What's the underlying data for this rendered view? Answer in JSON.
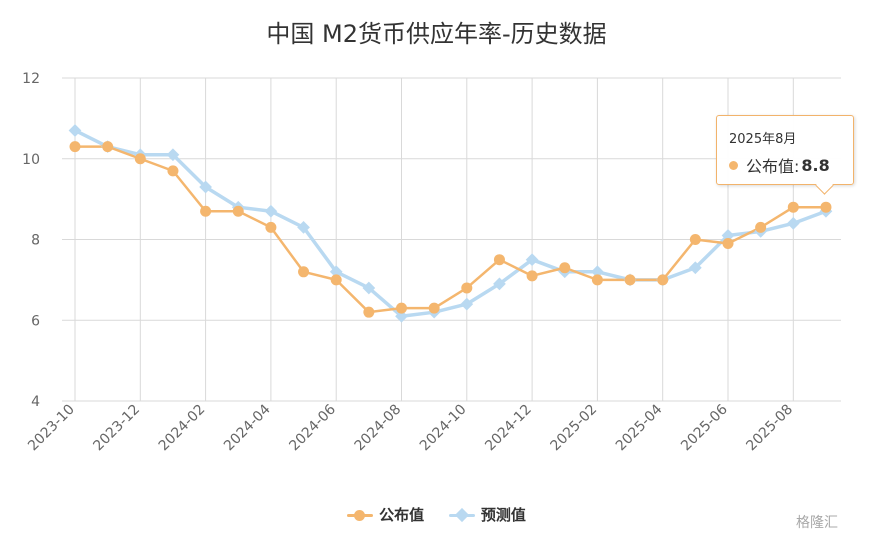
{
  "chart_data": {
    "type": "line",
    "title": "中国 M2货币供应年率-历史数据",
    "xlabel": "",
    "ylabel": "",
    "ylim": [
      4,
      12
    ],
    "yticks": [
      "4",
      "6",
      "8",
      "10",
      "12"
    ],
    "x": [
      "2023-10",
      "2023-11",
      "2023-12",
      "2024-01",
      "2024-02",
      "2024-03",
      "2024-04",
      "2024-05",
      "2024-06",
      "2024-07",
      "2024-08",
      "2024-09",
      "2024-10",
      "2024-11",
      "2024-12",
      "2025-01",
      "2025-02",
      "2025-03",
      "2025-04",
      "2025-05",
      "2025-06",
      "2025-07",
      "2025-08",
      "2025-09"
    ],
    "xtick_labels": [
      "2023-10",
      "2023-12",
      "2024-02",
      "2024-04",
      "2024-06",
      "2024-08",
      "2024-10",
      "2024-12",
      "2025-02",
      "2025-04",
      "2025-06",
      "2025-08"
    ],
    "grid": true,
    "legend_position": "bottom",
    "series": [
      {
        "name": "公布值",
        "color": "#f4b66e",
        "marker": "circle",
        "values": [
          10.3,
          10.3,
          10.0,
          9.7,
          8.7,
          8.7,
          8.3,
          7.2,
          7.0,
          6.2,
          6.3,
          6.3,
          6.8,
          7.5,
          7.1,
          7.3,
          7.0,
          7.0,
          7.0,
          8.0,
          7.9,
          8.3,
          8.8,
          8.8
        ]
      },
      {
        "name": "预测值",
        "color": "#b9d9f1",
        "marker": "diamond",
        "values": [
          10.7,
          10.3,
          10.1,
          10.1,
          9.3,
          8.8,
          8.7,
          8.3,
          7.2,
          6.8,
          6.1,
          6.2,
          6.4,
          6.9,
          7.5,
          7.2,
          7.2,
          7.0,
          7.0,
          7.3,
          8.1,
          8.2,
          8.4,
          8.7
        ]
      }
    ],
    "tooltip": {
      "date": "2025年8月",
      "label": "公布值:",
      "value": "8.8"
    }
  },
  "watermark": "格隆汇"
}
